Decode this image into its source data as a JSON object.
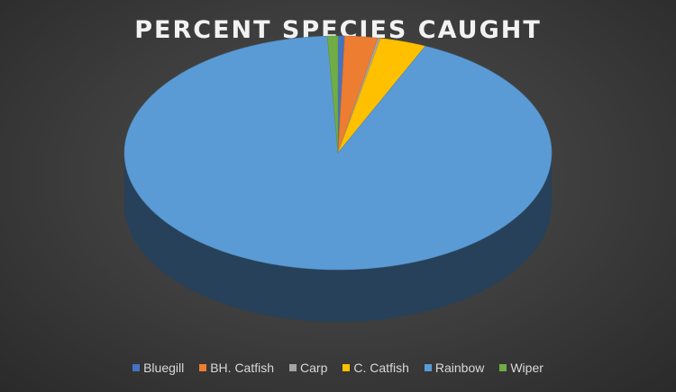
{
  "chart_data": {
    "type": "pie",
    "title": "PERCENT SPECIES CAUGHT",
    "categories": [
      "Bluegill",
      "BH. Catfish",
      "Carp",
      "C. Catfish",
      "Rainbow",
      "Wiper"
    ],
    "values": [
      0.5,
      2.5,
      0.2,
      3.5,
      92.5,
      0.8
    ],
    "colors": [
      "#4472c4",
      "#ed7d31",
      "#a5a5a5",
      "#ffc000",
      "#5b9bd5",
      "#70ad47"
    ],
    "legend_position": "bottom",
    "style": "3d"
  }
}
